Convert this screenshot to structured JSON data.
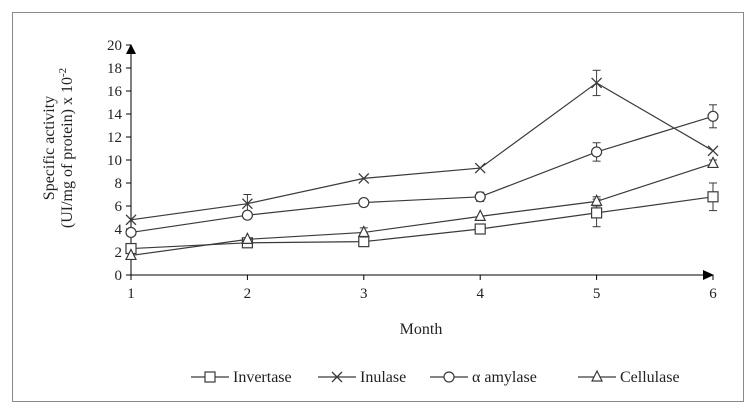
{
  "chart_data": {
    "type": "line",
    "title": "",
    "xlabel": "Month",
    "ylabel_line1": "Specific activity",
    "ylabel_line2": "(UI/mg of protein) x 10",
    "ylabel_exponent": "-2",
    "x": [
      1,
      2,
      3,
      4,
      5,
      6
    ],
    "xlim": [
      1,
      6
    ],
    "ylim": [
      0,
      20
    ],
    "yticks": [
      0,
      2,
      4,
      6,
      8,
      10,
      12,
      14,
      16,
      18,
      20
    ],
    "grid": false,
    "legend_position": "bottom",
    "colors": {
      "line": "#3a3a3a",
      "axis": "#000000",
      "frame": "#8a8a8a"
    },
    "series": [
      {
        "name": "Invertase",
        "marker": "square",
        "values": [
          2.3,
          2.8,
          2.9,
          4.0,
          5.4,
          6.8
        ],
        "errors": [
          0,
          0,
          0,
          0.3,
          1.2,
          1.2
        ]
      },
      {
        "name": "Inulase",
        "marker": "x",
        "values": [
          4.8,
          6.2,
          8.4,
          9.3,
          16.7,
          10.8
        ],
        "errors": [
          0,
          0.8,
          0,
          0,
          1.1,
          0
        ]
      },
      {
        "name": "α amylase",
        "marker": "circle",
        "values": [
          3.7,
          5.2,
          6.3,
          6.8,
          10.7,
          13.8
        ],
        "errors": [
          0,
          0,
          0,
          0.4,
          0.8,
          1.0
        ]
      },
      {
        "name": "Cellulase",
        "marker": "triangle",
        "values": [
          1.7,
          3.1,
          3.7,
          5.1,
          6.4,
          9.7
        ],
        "errors": [
          0,
          0,
          0.4,
          0,
          0.4,
          0.3
        ]
      }
    ]
  }
}
